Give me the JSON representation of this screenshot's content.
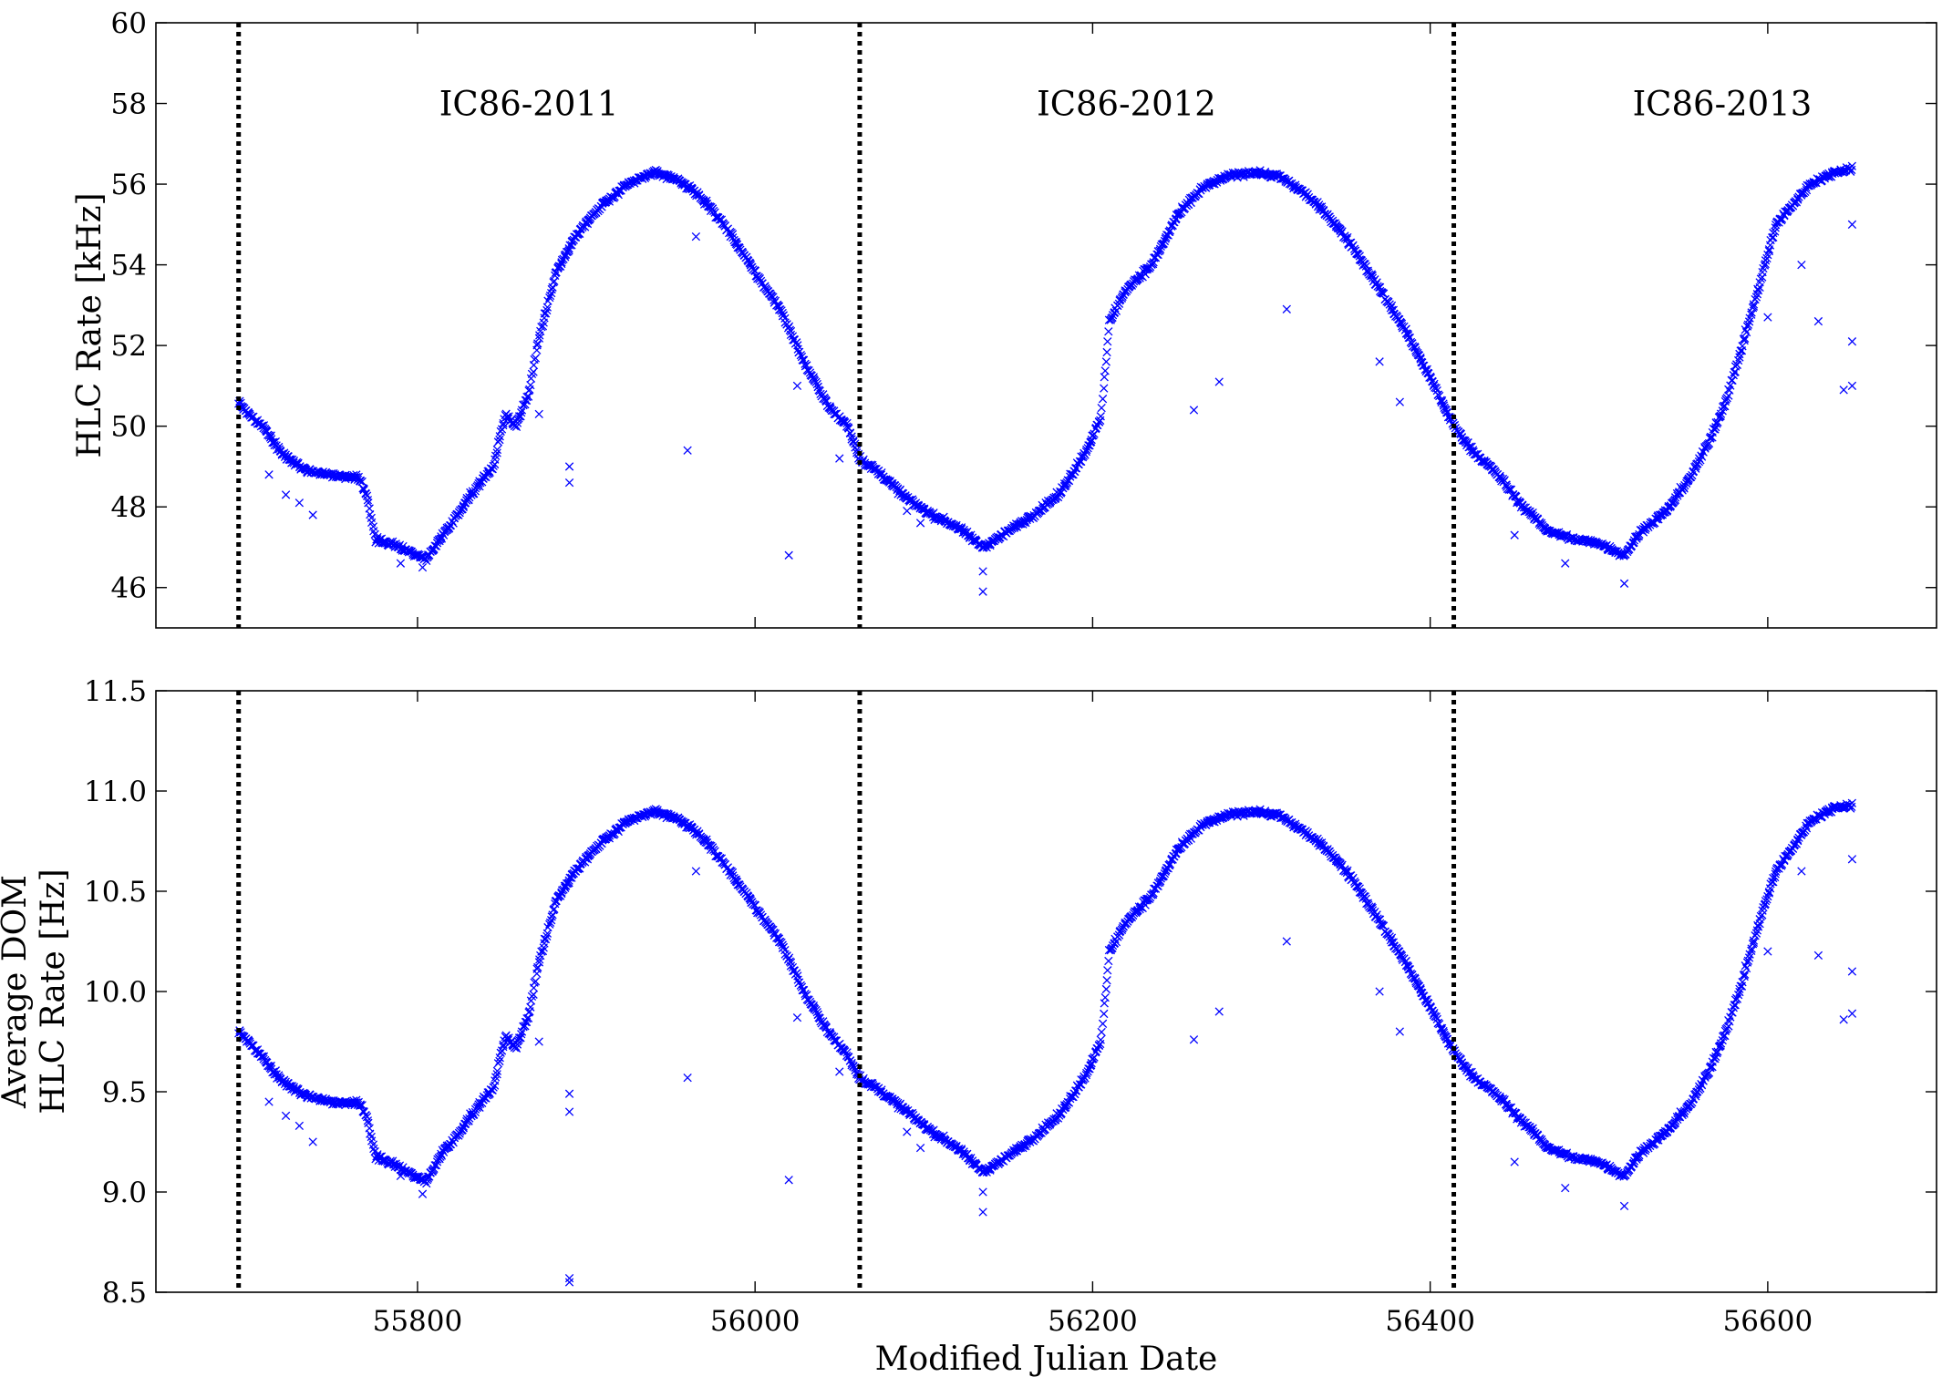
{
  "chart_data": [
    {
      "type": "scatter",
      "ylabel": "HLC Rate [kHz]",
      "xlim": [
        55645,
        56700
      ],
      "ylim": [
        45,
        60
      ],
      "yticks": [
        46,
        48,
        50,
        52,
        54,
        56,
        58,
        60
      ],
      "ytick_labels": [
        "46",
        "48",
        "50",
        "52",
        "54",
        "56",
        "58",
        "60"
      ],
      "xticks": [
        55800,
        56000,
        56200,
        56400,
        56600
      ],
      "xtick_labels": [],
      "grid": false,
      "marker": "x",
      "color": "#0000ff",
      "season_boundaries": [
        55694,
        56062,
        56414
      ],
      "season_labels": [
        {
          "text": "IC86-2011",
          "x": 55866,
          "y": 58
        },
        {
          "text": "IC86-2012",
          "x": 56220,
          "y": 58
        },
        {
          "text": "IC86-2013",
          "x": 56573,
          "y": 58
        }
      ],
      "curve": [
        [
          55694,
          50.6
        ],
        [
          55700,
          50.3
        ],
        [
          55710,
          49.9
        ],
        [
          55720,
          49.3
        ],
        [
          55735,
          48.9
        ],
        [
          55750,
          48.8
        ],
        [
          55765,
          48.7
        ],
        [
          55770,
          48.3
        ],
        [
          55775,
          47.2
        ],
        [
          55790,
          47.0
        ],
        [
          55805,
          46.7
        ],
        [
          55815,
          47.3
        ],
        [
          55825,
          47.9
        ],
        [
          55835,
          48.5
        ],
        [
          55845,
          49.0
        ],
        [
          55852,
          50.3
        ],
        [
          55858,
          50.0
        ],
        [
          55866,
          50.8
        ],
        [
          55872,
          52.2
        ],
        [
          55882,
          53.8
        ],
        [
          55895,
          54.8
        ],
        [
          55910,
          55.5
        ],
        [
          55925,
          56.0
        ],
        [
          55940,
          56.3
        ],
        [
          55955,
          56.1
        ],
        [
          55970,
          55.6
        ],
        [
          55985,
          54.8
        ],
        [
          56000,
          53.8
        ],
        [
          56015,
          52.9
        ],
        [
          56030,
          51.5
        ],
        [
          56045,
          50.4
        ],
        [
          56055,
          50.0
        ],
        [
          56062,
          49.2
        ],
        [
          56075,
          48.8
        ],
        [
          56090,
          48.2
        ],
        [
          56105,
          47.8
        ],
        [
          56120,
          47.5
        ],
        [
          56135,
          47.0
        ],
        [
          56150,
          47.4
        ],
        [
          56165,
          47.8
        ],
        [
          56180,
          48.3
        ],
        [
          56195,
          49.3
        ],
        [
          56205,
          50.2
        ],
        [
          56210,
          52.6
        ],
        [
          56220,
          53.4
        ],
        [
          56235,
          54.0
        ],
        [
          56250,
          55.2
        ],
        [
          56265,
          55.9
        ],
        [
          56280,
          56.2
        ],
        [
          56295,
          56.3
        ],
        [
          56310,
          56.2
        ],
        [
          56325,
          55.8
        ],
        [
          56340,
          55.2
        ],
        [
          56355,
          54.4
        ],
        [
          56370,
          53.4
        ],
        [
          56385,
          52.4
        ],
        [
          56400,
          51.2
        ],
        [
          56414,
          50.0
        ],
        [
          56425,
          49.4
        ],
        [
          56440,
          48.8
        ],
        [
          56455,
          48.0
        ],
        [
          56470,
          47.4
        ],
        [
          56485,
          47.2
        ],
        [
          56500,
          47.1
        ],
        [
          56515,
          46.8
        ],
        [
          56525,
          47.4
        ],
        [
          56540,
          47.9
        ],
        [
          56555,
          48.8
        ],
        [
          56565,
          49.6
        ],
        [
          56575,
          50.6
        ],
        [
          56585,
          52.0
        ],
        [
          56595,
          53.5
        ],
        [
          56605,
          55.0
        ],
        [
          56615,
          55.5
        ],
        [
          56625,
          56.0
        ],
        [
          56640,
          56.3
        ],
        [
          56650,
          56.4
        ]
      ],
      "outliers": [
        [
          55712,
          48.8
        ],
        [
          55722,
          48.3
        ],
        [
          55730,
          48.1
        ],
        [
          55738,
          47.8
        ],
        [
          55790,
          46.6
        ],
        [
          55803,
          46.5
        ],
        [
          55890,
          49.0
        ],
        [
          55890,
          48.6
        ],
        [
          55872,
          50.3
        ],
        [
          55960,
          49.4
        ],
        [
          55965,
          54.7
        ],
        [
          55970,
          55.5
        ],
        [
          56020,
          46.8
        ],
        [
          56025,
          51.0
        ],
        [
          56050,
          49.2
        ],
        [
          56090,
          47.9
        ],
        [
          56098,
          47.6
        ],
        [
          56135,
          45.9
        ],
        [
          56135,
          46.4
        ],
        [
          56260,
          50.4
        ],
        [
          56275,
          51.1
        ],
        [
          56315,
          52.9
        ],
        [
          56370,
          51.6
        ],
        [
          56382,
          50.6
        ],
        [
          56450,
          47.3
        ],
        [
          56480,
          46.6
        ],
        [
          56515,
          46.1
        ],
        [
          56600,
          52.7
        ],
        [
          56620,
          54.0
        ],
        [
          56630,
          52.6
        ],
        [
          56645,
          50.9
        ],
        [
          56650,
          52.1
        ],
        [
          56650,
          51.0
        ],
        [
          56650,
          55.0
        ]
      ]
    },
    {
      "type": "scatter",
      "ylabel": "Average DOM HLC Rate [Hz]",
      "ylabel_lines": [
        "Average DOM",
        "HLC Rate [Hz]"
      ],
      "xlabel": "Modified Julian Date",
      "xlim": [
        55645,
        56700
      ],
      "ylim": [
        8.5,
        11.5
      ],
      "yticks": [
        8.5,
        9.0,
        9.5,
        10.0,
        10.5,
        11.0,
        11.5
      ],
      "ytick_labels": [
        "8.5",
        "9.0",
        "9.5",
        "10.0",
        "10.5",
        "11.0",
        "11.5"
      ],
      "xticks": [
        55800,
        56000,
        56200,
        56400,
        56600
      ],
      "xtick_labels": [
        "55800",
        "56000",
        "56200",
        "56400",
        "56600"
      ],
      "grid": false,
      "marker": "x",
      "color": "#0000ff",
      "season_boundaries": [
        55694,
        56062,
        56414
      ],
      "curve": [
        [
          55694,
          9.8
        ],
        [
          55700,
          9.75
        ],
        [
          55710,
          9.65
        ],
        [
          55720,
          9.55
        ],
        [
          55735,
          9.48
        ],
        [
          55750,
          9.45
        ],
        [
          55765,
          9.44
        ],
        [
          55770,
          9.38
        ],
        [
          55775,
          9.18
        ],
        [
          55790,
          9.12
        ],
        [
          55805,
          9.05
        ],
        [
          55815,
          9.2
        ],
        [
          55825,
          9.3
        ],
        [
          55835,
          9.42
        ],
        [
          55845,
          9.52
        ],
        [
          55852,
          9.78
        ],
        [
          55858,
          9.72
        ],
        [
          55866,
          9.88
        ],
        [
          55872,
          10.15
        ],
        [
          55882,
          10.45
        ],
        [
          55895,
          10.62
        ],
        [
          55910,
          10.75
        ],
        [
          55925,
          10.85
        ],
        [
          55940,
          10.9
        ],
        [
          55955,
          10.86
        ],
        [
          55970,
          10.76
        ],
        [
          55985,
          10.6
        ],
        [
          56000,
          10.42
        ],
        [
          56015,
          10.25
        ],
        [
          56030,
          9.98
        ],
        [
          56045,
          9.78
        ],
        [
          56055,
          9.68
        ],
        [
          56062,
          9.57
        ],
        [
          56075,
          9.5
        ],
        [
          56090,
          9.4
        ],
        [
          56105,
          9.3
        ],
        [
          56120,
          9.22
        ],
        [
          56135,
          9.1
        ],
        [
          56150,
          9.18
        ],
        [
          56165,
          9.27
        ],
        [
          56180,
          9.38
        ],
        [
          56195,
          9.57
        ],
        [
          56205,
          9.75
        ],
        [
          56210,
          10.2
        ],
        [
          56220,
          10.35
        ],
        [
          56235,
          10.48
        ],
        [
          56250,
          10.7
        ],
        [
          56265,
          10.83
        ],
        [
          56280,
          10.88
        ],
        [
          56295,
          10.9
        ],
        [
          56310,
          10.88
        ],
        [
          56325,
          10.8
        ],
        [
          56340,
          10.7
        ],
        [
          56355,
          10.55
        ],
        [
          56370,
          10.35
        ],
        [
          56385,
          10.15
        ],
        [
          56400,
          9.92
        ],
        [
          56414,
          9.7
        ],
        [
          56425,
          9.58
        ],
        [
          56440,
          9.48
        ],
        [
          56455,
          9.35
        ],
        [
          56470,
          9.22
        ],
        [
          56485,
          9.17
        ],
        [
          56500,
          9.15
        ],
        [
          56515,
          9.08
        ],
        [
          56525,
          9.2
        ],
        [
          56540,
          9.3
        ],
        [
          56555,
          9.45
        ],
        [
          56565,
          9.6
        ],
        [
          56575,
          9.8
        ],
        [
          56585,
          10.05
        ],
        [
          56595,
          10.35
        ],
        [
          56605,
          10.6
        ],
        [
          56615,
          10.72
        ],
        [
          56625,
          10.85
        ],
        [
          56640,
          10.92
        ],
        [
          56650,
          10.93
        ]
      ],
      "outliers": [
        [
          55712,
          9.45
        ],
        [
          55722,
          9.38
        ],
        [
          55730,
          9.33
        ],
        [
          55738,
          9.25
        ],
        [
          55790,
          9.08
        ],
        [
          55803,
          8.99
        ],
        [
          55890,
          9.49
        ],
        [
          55890,
          9.4
        ],
        [
          55890,
          8.57
        ],
        [
          55890,
          8.55
        ],
        [
          55872,
          9.75
        ],
        [
          55960,
          9.57
        ],
        [
          55965,
          10.6
        ],
        [
          55970,
          10.75
        ],
        [
          56020,
          9.06
        ],
        [
          56025,
          9.87
        ],
        [
          56050,
          9.6
        ],
        [
          56090,
          9.3
        ],
        [
          56098,
          9.22
        ],
        [
          56135,
          8.9
        ],
        [
          56135,
          9.0
        ],
        [
          56260,
          9.76
        ],
        [
          56275,
          9.9
        ],
        [
          56315,
          10.25
        ],
        [
          56370,
          10.0
        ],
        [
          56382,
          9.8
        ],
        [
          56450,
          9.15
        ],
        [
          56480,
          9.02
        ],
        [
          56515,
          8.93
        ],
        [
          56600,
          10.2
        ],
        [
          56620,
          10.6
        ],
        [
          56630,
          10.18
        ],
        [
          56645,
          9.86
        ],
        [
          56650,
          10.1
        ],
        [
          56650,
          9.89
        ],
        [
          56650,
          10.66
        ]
      ]
    }
  ]
}
